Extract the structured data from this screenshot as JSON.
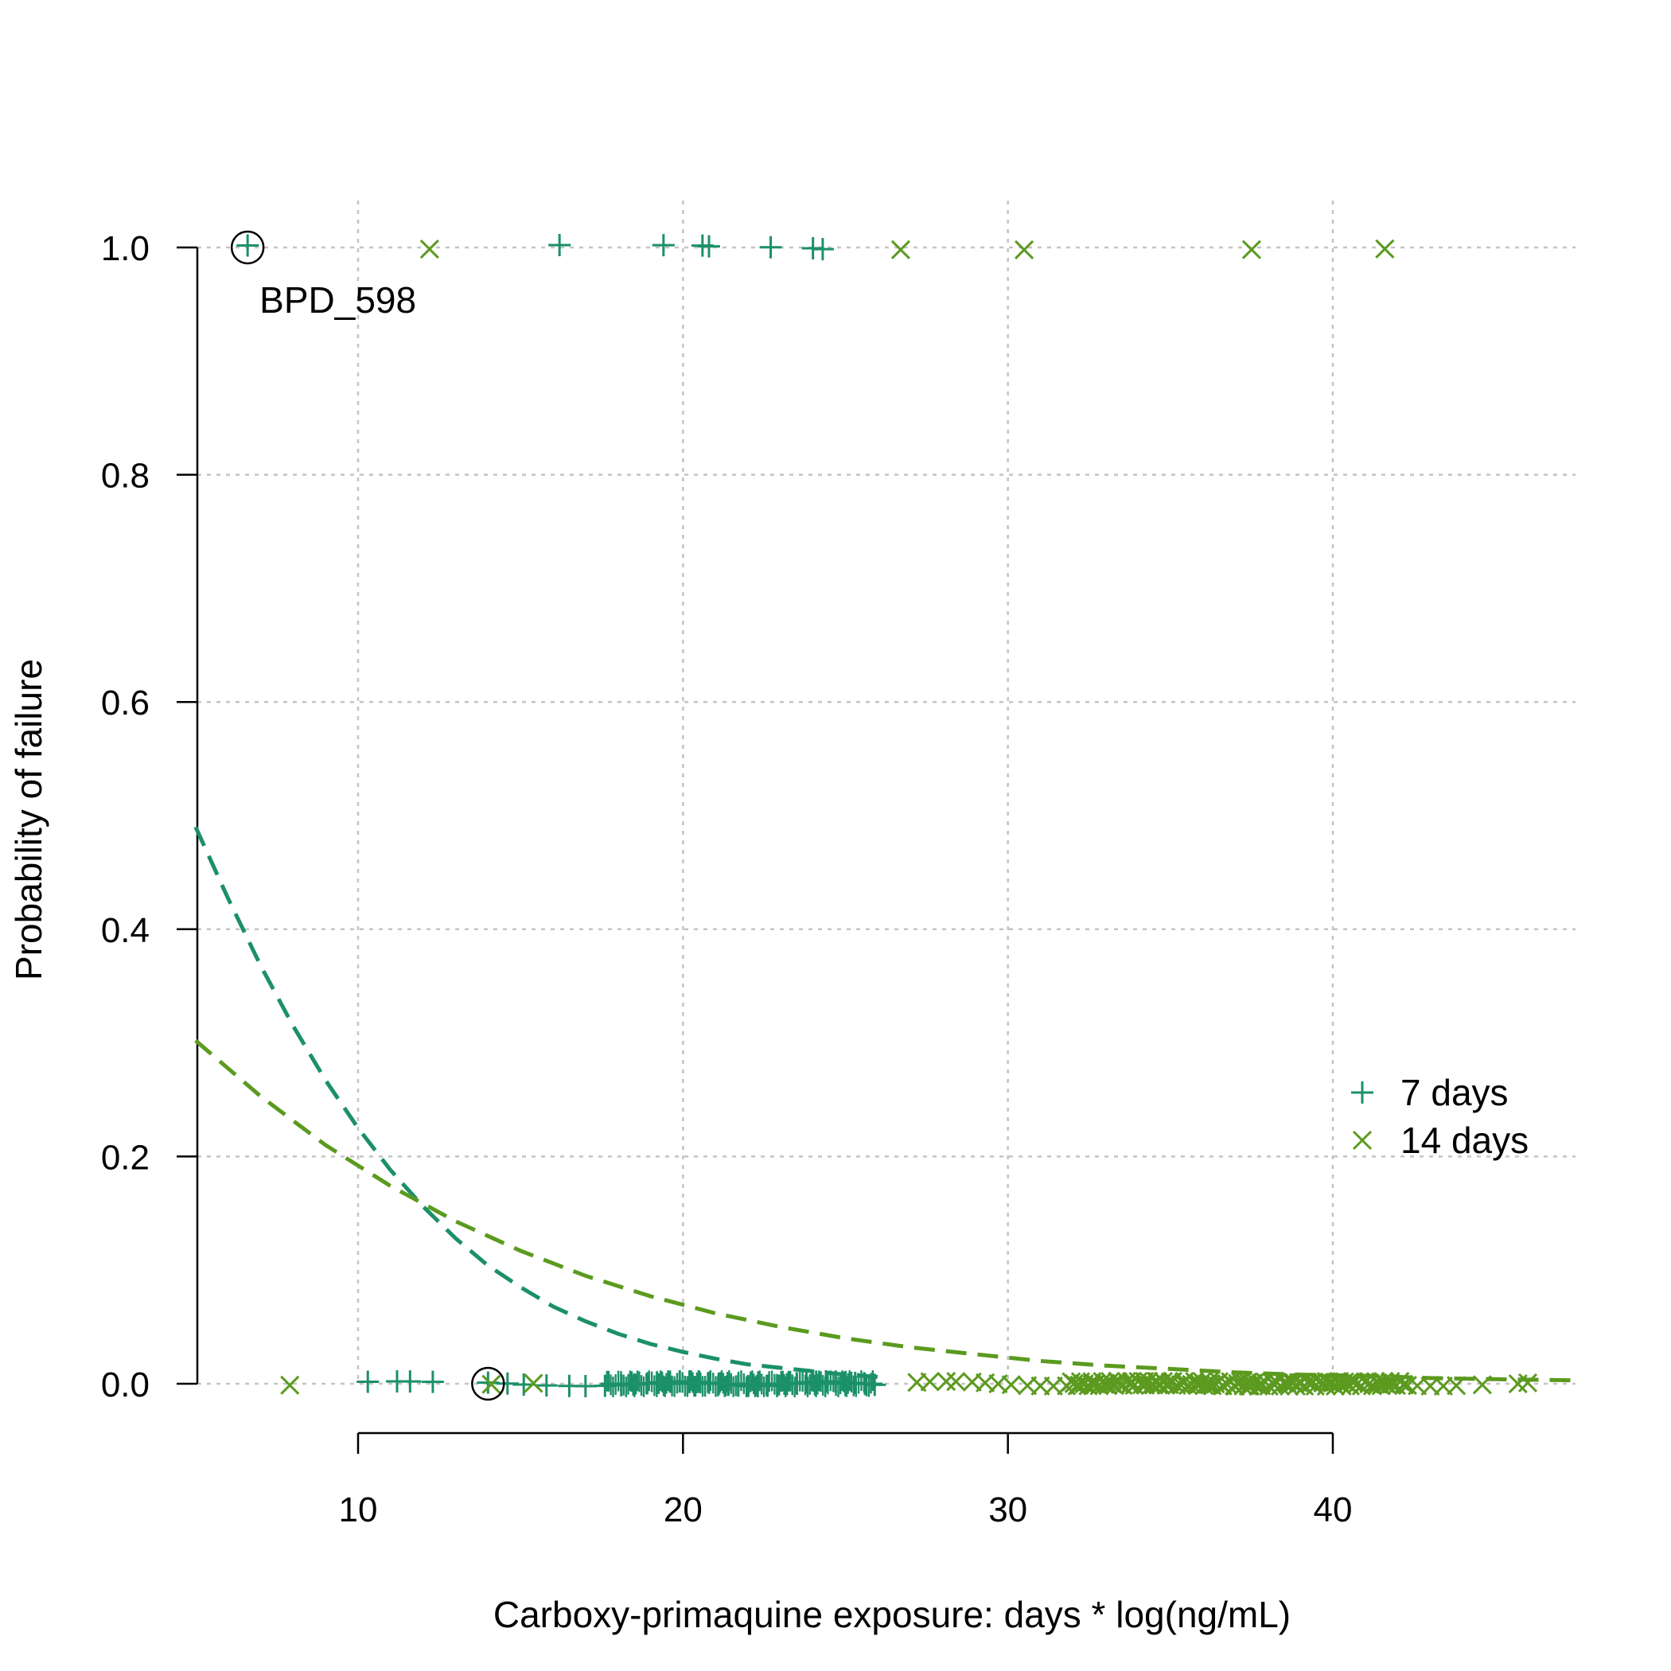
{
  "chart_data": {
    "type": "scatter",
    "title": "",
    "xlabel": "Carboxy-primaquine exposure: days * log(ng/mL)",
    "ylabel": "Probability of failure",
    "xlim": [
      5,
      47.5
    ],
    "ylim": [
      0,
      1
    ],
    "xticks": [
      10,
      20,
      30,
      40
    ],
    "xtick_labels": [
      "10",
      "20",
      "30",
      "40"
    ],
    "yticks": [
      0,
      0.2,
      0.4,
      0.6,
      0.8,
      1.0
    ],
    "ytick_labels": [
      "0.0",
      "0.2",
      "0.4",
      "0.6",
      "0.8",
      "1.0"
    ],
    "grid": true,
    "legend_position": "right",
    "series": [
      {
        "name": "7 days",
        "marker": "plus",
        "color": "#1b9069",
        "failures_x": [
          6.6,
          16.2,
          19.4,
          20.6,
          20.8,
          22.7,
          24.0,
          24.3
        ],
        "nonfailures_x": [
          10.3,
          11.2,
          11.6,
          12.3,
          14.0,
          14.6,
          15.1,
          15.8,
          16.5,
          17.0,
          17.6,
          18.1,
          18.5,
          18.9,
          19.2,
          19.6,
          19.9,
          20.2,
          20.5,
          20.8,
          21.1,
          21.4,
          21.7,
          22.0,
          22.3,
          22.6,
          22.9,
          23.2,
          23.5,
          23.8,
          24.1,
          24.4,
          24.7,
          25.0,
          25.3,
          25.6,
          25.9
        ]
      },
      {
        "name": "14 days",
        "marker": "x",
        "color": "#5b9a1f",
        "failures_x": [
          12.2,
          26.7,
          30.5,
          37.5,
          41.6
        ],
        "nonfailures_x": [
          7.9,
          14.1,
          15.4,
          27.2,
          27.6,
          28.1,
          28.4,
          28.9,
          29.3,
          29.7,
          30.1,
          30.6,
          31.0,
          31.4,
          31.8,
          32.2,
          32.6,
          33.0,
          33.4,
          33.8,
          34.2,
          34.6,
          35.0,
          35.4,
          35.8,
          36.2,
          36.6,
          37.0,
          37.4,
          37.8,
          38.2,
          38.6,
          39.0,
          39.4,
          39.8,
          40.2,
          40.6,
          41.0,
          41.4,
          41.8,
          42.2,
          42.6,
          43.0,
          43.4,
          43.8,
          44.6,
          45.7,
          46.0
        ]
      }
    ],
    "fitted_curves": [
      {
        "name": "7 days",
        "color": "#1b9069",
        "x": [
          5,
          6,
          7,
          8,
          9,
          10,
          11,
          12,
          13,
          14,
          15,
          16,
          17,
          18,
          19,
          20,
          21,
          22,
          23,
          24,
          25,
          26
        ],
        "y": [
          0.49,
          0.427,
          0.368,
          0.315,
          0.267,
          0.225,
          0.188,
          0.156,
          0.128,
          0.104,
          0.085,
          0.068,
          0.055,
          0.044,
          0.035,
          0.028,
          0.022,
          0.017,
          0.014,
          0.011,
          0.008,
          0.006
        ]
      },
      {
        "name": "14 days",
        "color": "#5b9a1f",
        "x": [
          5,
          7,
          9,
          11,
          13,
          15,
          17,
          19,
          21,
          23,
          25,
          27,
          29,
          31,
          33,
          35,
          37,
          39,
          41,
          43,
          45,
          47.5
        ],
        "y": [
          0.302,
          0.253,
          0.21,
          0.174,
          0.143,
          0.117,
          0.095,
          0.077,
          0.062,
          0.05,
          0.04,
          0.032,
          0.026,
          0.02,
          0.016,
          0.013,
          0.01,
          0.008,
          0.007,
          0.005,
          0.004,
          0.003
        ]
      }
    ],
    "highlighted_points": [
      {
        "x": 6.6,
        "y": 1.0,
        "label": "BPD_598"
      },
      {
        "x": 14.0,
        "y": 0.0,
        "label": ""
      }
    ],
    "annotations": [
      "BPD_598"
    ]
  }
}
